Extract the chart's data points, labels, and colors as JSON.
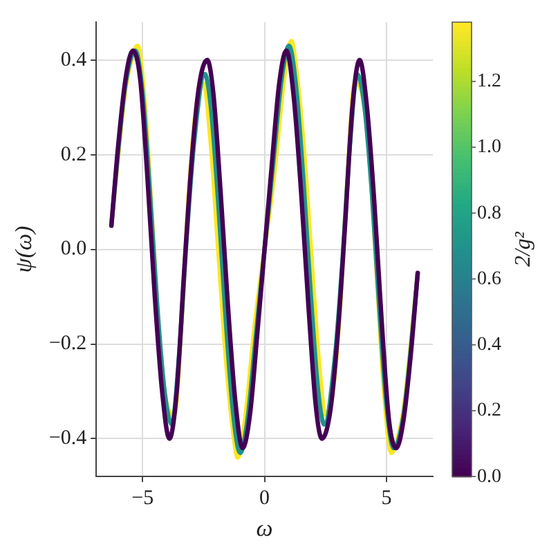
{
  "chart_data": {
    "type": "line",
    "xlabel": "ω",
    "ylabel": "ψ(ω)",
    "clabel": "2/g²",
    "grid": true,
    "legend": false,
    "marker": "none",
    "line_style": "solid",
    "xlim": [
      -6.9,
      6.9
    ],
    "ylim": [
      -0.48,
      0.48
    ],
    "xticks": [
      {
        "value": -5,
        "label": "−5"
      },
      0,
      5
    ],
    "yticks": [
      {
        "value": -0.4,
        "label": "−0.4"
      },
      {
        "value": -0.2,
        "label": "−0.2"
      },
      {
        "value": 0,
        "label": "0.0"
      },
      0.2,
      0.4
    ],
    "clim": [
      0,
      1.38
    ],
    "cticks": [
      {
        "value": 0,
        "label": "0.0"
      },
      0.2,
      0.4,
      0.6,
      0.8,
      {
        "value": 1,
        "label": "1.0"
      },
      1.2
    ],
    "series": [
      {
        "color": "#440154",
        "x": [
          -6.28,
          -6.0,
          -5.7,
          -5.4,
          -5.1,
          -4.8,
          -4.5,
          -4.2,
          -3.9,
          -3.6,
          -3.3,
          -3.0,
          -2.7,
          -2.35,
          -2.1,
          -1.8,
          -1.5,
          -1.2,
          -0.9,
          -0.6,
          -0.3,
          0,
          0.3,
          0.6,
          0.9,
          1.2,
          1.5,
          1.8,
          2.1,
          2.35,
          2.7,
          3.0,
          3.3,
          3.6,
          3.9,
          4.2,
          4.5,
          4.8,
          5.1,
          5.4,
          5.7,
          6.0,
          6.28
        ],
        "values": [
          0.05,
          0.22,
          0.36,
          0.42,
          0.36,
          0.15,
          -0.1,
          -0.3,
          -0.4,
          -0.3,
          -0.05,
          0.18,
          0.34,
          0.4,
          0.33,
          0.12,
          -0.12,
          -0.32,
          -0.42,
          -0.35,
          -0.18,
          0,
          0.18,
          0.35,
          0.42,
          0.32,
          0.12,
          -0.12,
          -0.33,
          -0.4,
          -0.34,
          -0.18,
          0.05,
          0.3,
          0.4,
          0.3,
          0.1,
          -0.15,
          -0.36,
          -0.42,
          -0.36,
          -0.22,
          -0.05
        ]
      },
      {
        "color": "#21918c",
        "x": [
          -6.28,
          -6.0,
          -5.7,
          -5.3,
          -5.0,
          -4.7,
          -4.4,
          -4.1,
          -3.8,
          -3.5,
          -3.2,
          -2.9,
          -2.45,
          -2.2,
          -1.9,
          -1.6,
          -1.3,
          -1.0,
          -0.7,
          -0.35,
          0,
          0.35,
          0.7,
          1.0,
          1.3,
          1.6,
          1.9,
          2.2,
          2.45,
          2.9,
          3.2,
          3.5,
          3.8,
          4.1,
          4.4,
          4.7,
          5.0,
          5.3,
          5.7,
          6.0,
          6.28
        ],
        "values": [
          0.05,
          0.21,
          0.35,
          0.42,
          0.33,
          0.12,
          -0.12,
          -0.3,
          -0.37,
          -0.22,
          0.02,
          0.22,
          0.37,
          0.3,
          0.1,
          -0.14,
          -0.34,
          -0.43,
          -0.36,
          -0.18,
          0,
          0.18,
          0.36,
          0.43,
          0.34,
          0.14,
          -0.1,
          -0.3,
          -0.37,
          -0.22,
          -0.02,
          0.22,
          0.37,
          0.3,
          0.12,
          -0.12,
          -0.33,
          -0.42,
          -0.35,
          -0.21,
          -0.05
        ]
      },
      {
        "color": "#fde725",
        "x": [
          -6.28,
          -6.0,
          -5.7,
          -5.4,
          -5.2,
          -4.9,
          -4.6,
          -4.3,
          -4.0,
          -3.7,
          -3.4,
          -3.1,
          -2.8,
          -2.5,
          -2.2,
          -1.9,
          -1.6,
          -1.3,
          -1.1,
          -0.8,
          -0.4,
          0,
          0.4,
          0.8,
          1.1,
          1.3,
          1.6,
          1.9,
          2.2,
          2.5,
          2.8,
          3.1,
          3.4,
          3.7,
          4.0,
          4.3,
          4.6,
          4.9,
          5.2,
          5.4,
          5.7,
          6.0,
          6.28
        ],
        "values": [
          0.05,
          0.2,
          0.34,
          0.41,
          0.43,
          0.3,
          0.05,
          -0.2,
          -0.33,
          -0.35,
          -0.15,
          0.12,
          0.3,
          0.35,
          0.22,
          0,
          -0.22,
          -0.38,
          -0.44,
          -0.36,
          -0.16,
          0,
          0.16,
          0.36,
          0.44,
          0.38,
          0.22,
          0,
          -0.22,
          -0.35,
          -0.3,
          -0.12,
          0.15,
          0.35,
          0.33,
          0.2,
          -0.05,
          -0.3,
          -0.43,
          -0.41,
          -0.34,
          -0.2,
          -0.05
        ]
      }
    ]
  }
}
